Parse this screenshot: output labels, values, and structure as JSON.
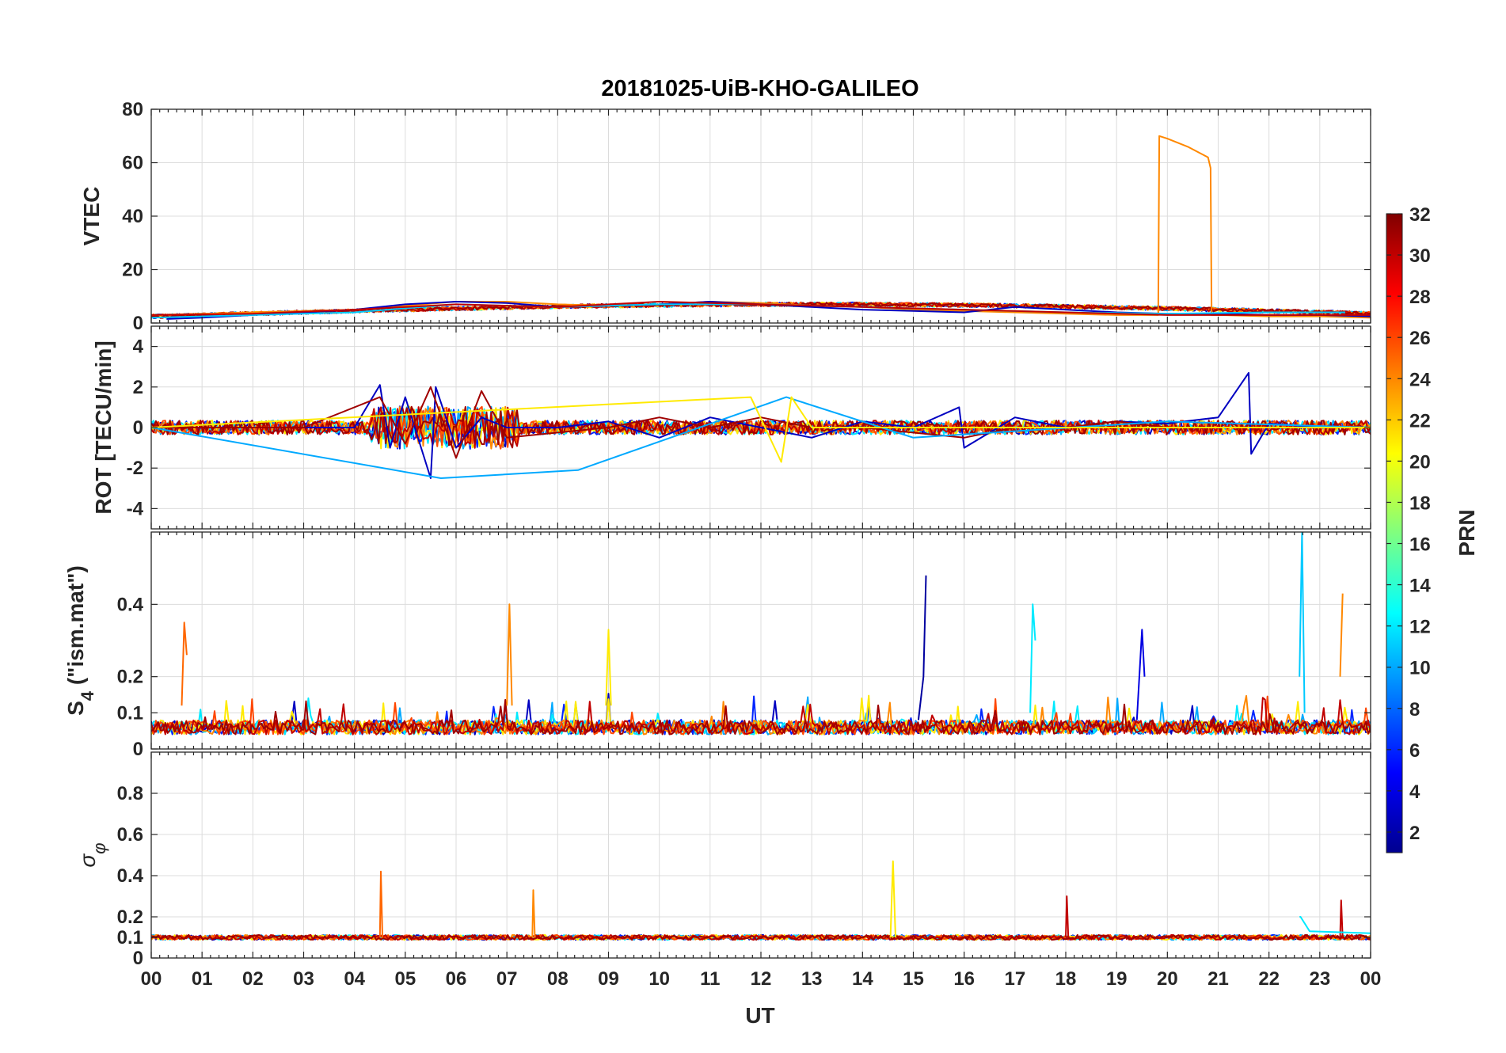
{
  "chart_data": {
    "type": "line",
    "title": "20181025-UiB-KHO-GALILEO",
    "xlabel": "UT",
    "xlim": [
      0,
      24
    ],
    "x_tick_labels": [
      "00",
      "01",
      "02",
      "03",
      "04",
      "05",
      "06",
      "07",
      "08",
      "09",
      "10",
      "11",
      "12",
      "13",
      "14",
      "15",
      "16",
      "17",
      "18",
      "19",
      "20",
      "21",
      "22",
      "23",
      "00"
    ],
    "grid": true,
    "colorbar": {
      "label": "PRN",
      "colormap": "jet",
      "range": [
        1,
        32
      ],
      "ticks": [
        2,
        4,
        6,
        8,
        10,
        12,
        14,
        16,
        18,
        20,
        22,
        24,
        26,
        28,
        30,
        32
      ],
      "tick_labels": [
        "2",
        "4",
        "6",
        "8",
        "10",
        "12",
        "14",
        "16",
        "18",
        "20",
        "22",
        "24",
        "26",
        "28",
        "30",
        "32"
      ],
      "placement": "right"
    },
    "panels": [
      {
        "id": "vtec",
        "ylabel": "VTEC",
        "ylim": [
          0,
          80
        ],
        "yticks": [
          0,
          20,
          40,
          60,
          80
        ],
        "ytick_labels": [
          "0",
          "20",
          "40",
          "60",
          "80"
        ],
        "series": [
          {
            "prn": 24,
            "t": [
              0,
              1,
              2,
              3,
              4,
              5,
              6,
              7,
              8,
              9,
              10,
              11,
              12,
              13,
              14,
              15,
              16,
              17,
              18,
              19,
              19.82,
              19.84,
              20,
              20.4,
              20.8,
              20.85,
              20.87,
              21,
              22,
              23,
              24
            ],
            "values": [
              3,
              3.5,
              4,
              4.5,
              5,
              6.5,
              8,
              8,
              7,
              6.5,
              7,
              8,
              7.5,
              6.5,
              6,
              5,
              4.5,
              4,
              3.5,
              3,
              3,
              70,
              69,
              66,
              62,
              58,
              3,
              3,
              2.5,
              2.5,
              2
            ]
          },
          {
            "prn": 3,
            "t": [
              0.3,
              1,
              2,
              3,
              4,
              5,
              6,
              7,
              8,
              9,
              10,
              11,
              12,
              13,
              14,
              15,
              16,
              17,
              18,
              19,
              20,
              21,
              22,
              23,
              24
            ],
            "values": [
              1.5,
              2,
              3,
              4,
              5,
              7,
              8,
              7.5,
              6,
              6.5,
              7,
              8,
              7,
              6,
              5,
              4.5,
              4,
              6,
              5,
              4,
              3.5,
              3.5,
              3,
              3,
              2.5
            ]
          },
          {
            "prn": 11,
            "t": [
              0,
              2,
              4,
              6,
              8,
              10,
              12,
              14,
              16,
              18,
              20,
              22,
              23.5
            ],
            "values": [
              2,
              3,
              4,
              7,
              6,
              7,
              7,
              6,
              5,
              4,
              3.5,
              4,
              4
            ]
          },
          {
            "prn": 30,
            "t": [
              0,
              2,
              4,
              6,
              8,
              10,
              12,
              14,
              16,
              18,
              20,
              22,
              24
            ],
            "values": [
              3,
              3.5,
              5,
              7,
              6,
              8,
              7,
              6,
              5,
              4,
              3,
              3,
              3
            ]
          }
        ]
      },
      {
        "id": "rot",
        "ylabel": "ROT [TECU/min]",
        "ylim": [
          -5,
          5
        ],
        "yticks": [
          -4,
          -2,
          0,
          2,
          4
        ],
        "ytick_labels": [
          "-4",
          "-2",
          "0",
          "2",
          "4"
        ],
        "series": [
          {
            "prn": 3,
            "t": [
              0,
              2,
              4,
              4.5,
              4.7,
              5,
              5.5,
              5.6,
              6,
              6.5,
              7,
              8,
              9,
              10,
              11,
              12,
              13,
              14,
              15,
              15.9,
              16,
              17,
              18,
              19,
              20,
              21,
              21.6,
              21.65,
              22,
              23,
              24
            ],
            "values": [
              0,
              0,
              0,
              2.1,
              -1,
              1.5,
              -2.5,
              2,
              -1,
              0.5,
              0,
              0,
              0.3,
              -0.5,
              0.5,
              0,
              -0.5,
              0.3,
              0,
              1,
              -1,
              0.5,
              0,
              0.3,
              0.2,
              0.5,
              2.7,
              -1.3,
              0.2,
              0,
              0
            ]
          },
          {
            "prn": 31,
            "t": [
              0,
              3,
              4.5,
              5,
              5.5,
              6,
              6.5,
              7,
              9,
              10,
              11,
              12,
              13,
              14,
              16,
              17,
              18,
              19,
              20,
              22,
              24
            ],
            "values": [
              0,
              0,
              1.5,
              -0.8,
              2,
              -1.5,
              1.8,
              -0.5,
              0,
              0.5,
              0,
              0.5,
              0,
              0,
              -0.5,
              0,
              0,
              0.3,
              0,
              0,
              0
            ]
          },
          {
            "prn": 10,
            "t": [
              0,
              5.7,
              8.4,
              12.5,
              15,
              20,
              24
            ],
            "values": [
              0,
              -2.5,
              -2.1,
              1.5,
              -0.5,
              0.3,
              0
            ]
          },
          {
            "prn": 21,
            "t": [
              0,
              11.8,
              12.4,
              12.6,
              13,
              24
            ],
            "values": [
              0,
              1.5,
              -1.7,
              1.5,
              0,
              0
            ]
          }
        ]
      },
      {
        "id": "s4",
        "ylabel": "S4 (\"ism.mat\")",
        "ylabel_main": "S",
        "ylabel_subscript": "4",
        "ylabel_rest": " (\"ism.mat\")",
        "ylim": [
          0,
          0.6
        ],
        "yticks": [
          0,
          0.1,
          0.2,
          0.4
        ],
        "ytick_labels": [
          "0",
          "0.1",
          "0.2",
          "0.4"
        ],
        "series": [
          {
            "prn": 25,
            "t": [
              0.6,
              0.65,
              0.7
            ],
            "values": [
              0.12,
              0.35,
              0.26
            ]
          },
          {
            "prn": 24,
            "t": [
              7.0,
              7.05,
              7.1
            ],
            "values": [
              0.12,
              0.4,
              0.12
            ]
          },
          {
            "prn": 2,
            "t": [
              15.1,
              15.2,
              15.25
            ],
            "values": [
              0.08,
              0.2,
              0.48
            ]
          },
          {
            "prn": 12,
            "t": [
              17.3,
              17.35,
              17.4
            ],
            "values": [
              0.1,
              0.4,
              0.3
            ]
          },
          {
            "prn": 11,
            "t": [
              22.6,
              22.65,
              22.7
            ],
            "values": [
              0.2,
              0.6,
              0.1
            ]
          },
          {
            "prn": 24,
            "t": [
              23.4,
              23.45
            ],
            "values": [
              0.2,
              0.43
            ]
          },
          {
            "prn": 21,
            "t": [
              8.95,
              9.0,
              9.05
            ],
            "values": [
              0.12,
              0.33,
              0.12
            ]
          },
          {
            "prn": 4,
            "t": [
              19.4,
              19.5,
              19.55
            ],
            "values": [
              0.08,
              0.33,
              0.2
            ]
          }
        ]
      },
      {
        "id": "sigma_phi",
        "ylabel": "σφ",
        "ylabel_main": "σ",
        "ylabel_subscript": "φ",
        "ylim": [
          0,
          1
        ],
        "yticks": [
          0,
          0.1,
          0.2,
          0.4,
          0.6,
          0.8
        ],
        "ytick_labels": [
          "0",
          "0.1",
          "0.2",
          "0.4",
          "0.6",
          "0.8"
        ],
        "series": [
          {
            "prn": 21,
            "t": [
              14.55,
              14.6,
              14.65
            ],
            "values": [
              0.1,
              0.47,
              0.1
            ]
          },
          {
            "prn": 25,
            "t": [
              4.5,
              4.52,
              4.55
            ],
            "values": [
              0.1,
              0.42,
              0.1
            ]
          },
          {
            "prn": 24,
            "t": [
              7.5,
              7.52,
              7.55
            ],
            "values": [
              0.1,
              0.33,
              0.1
            ]
          },
          {
            "prn": 30,
            "t": [
              18.0,
              18.02,
              18.05
            ],
            "values": [
              0.1,
              0.3,
              0.1
            ]
          },
          {
            "prn": 30,
            "t": [
              23.4,
              23.42,
              23.45
            ],
            "values": [
              0.1,
              0.28,
              0.1
            ]
          },
          {
            "prn": 12,
            "t": [
              22.6,
              22.62,
              22.8,
              24
            ],
            "values": [
              0.2,
              0.2,
              0.13,
              0.12
            ]
          }
        ]
      }
    ]
  }
}
